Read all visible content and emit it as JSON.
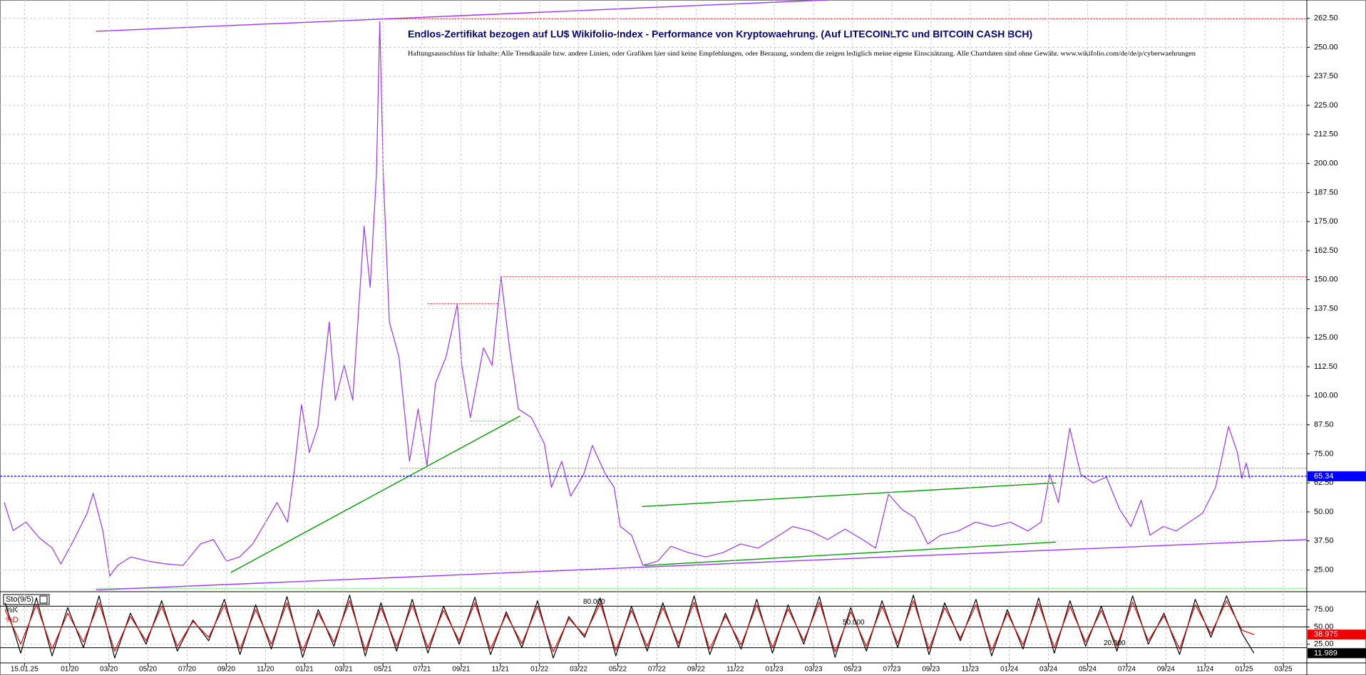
{
  "chart_data": [
    {
      "type": "line",
      "title": "Endlos-Zertifikat bezogen auf LU$ Wikifolio-Index - Performance von Kryptowaehrung. (Auf LITECOINLTC und BITCOIN CASH BCH)",
      "subtitle": "Haftungsausschluss für Inhalte: Alle Trendkanäle bzw. andere Linien, oder Grafiken hier sind keine Empfehlungen, oder Beratung, sondern die zeigen lediglich meine eigene Einschätzung. Alle Chartdaten sind ohne Gewähr. www.wikifolio.com/de/de/p/cyberwaehrungen",
      "x": [
        -3.34,
        -2.89,
        -2.23,
        -1.56,
        -0.89,
        -0.45,
        0.22,
        0.89,
        1.2,
        1.69,
        2.05,
        2.45,
        3.12,
        4.01,
        4.9,
        5.79,
        6.68,
        7.34,
        8.01,
        8.68,
        9.35,
        10.01,
        10.59,
        11.13,
        11.48,
        11.84,
        12.24,
        12.68,
        13.26,
        13.57,
        14.02,
        14.46,
        15.04,
        15.35,
        15.67,
        15.84,
        16.02,
        16.33,
        16.82,
        17.36,
        17.8,
        18.25,
        18.69,
        19.23,
        19.8,
        20.03,
        20.47,
        21.14,
        21.58,
        22.03,
        22.47,
        22.92,
        23.59,
        24.25,
        24.61,
        25.14,
        25.59,
        26.26,
        26.7,
        27.37,
        27.81,
        28.13,
        28.7,
        29.28,
        30.04,
        30.71,
        31.6,
        32.49,
        33.38,
        34.27,
        35.16,
        36.05,
        36.94,
        37.83,
        38.72,
        39.61,
        40.5,
        41.17,
        41.83,
        42.5,
        43.17,
        43.84,
        44.5,
        45.39,
        46.28,
        47.17,
        48.06,
        48.95,
        49.62,
        50.07,
        50.51,
        51.09,
        51.65,
        52.29,
        52.96,
        53.63,
        54.21,
        54.74,
        55.19,
        55.86,
        56.53,
        57.2,
        57.87,
        58.54,
        59.2,
        59.65,
        59.88,
        60.1,
        60.3
      ],
      "series": [
        {
          "color": "#9933ff",
          "values": [
            54,
            42,
            45.6,
            38.9,
            34.4,
            27.6,
            38.1,
            49.4,
            58,
            42,
            22.4,
            27,
            30.6,
            28.8,
            27.6,
            27,
            36.2,
            38.1,
            28.8,
            30.6,
            36.2,
            45.6,
            54,
            45.6,
            68.1,
            96.2,
            75.6,
            86.8,
            131.8,
            98.1,
            113.1,
            98.1,
            173,
            146.7,
            195.4,
            261,
            195.4,
            131.8,
            116.8,
            71.8,
            94.3,
            70,
            105.5,
            116.8,
            139.3,
            113.1,
            90.6,
            120.6,
            113.1,
            151.2,
            120.6,
            94.3,
            90.6,
            79.3,
            60.6,
            71.8,
            56.8,
            66.2,
            78.6,
            66.2,
            60.6,
            43.7,
            40,
            27,
            28.8,
            35.2,
            32.5,
            30.6,
            32.5,
            36.2,
            34.4,
            38.9,
            43.7,
            41.8,
            38.1,
            42.6,
            38.1,
            34.4,
            57.6,
            51.2,
            47.5,
            36.2,
            40,
            41.8,
            45.6,
            43.7,
            45.6,
            41.8,
            45.6,
            66.2,
            54,
            86,
            66.2,
            62.5,
            65,
            51.2,
            43.7,
            55,
            40,
            43.7,
            41.8,
            45.6,
            49.4,
            60.6,
            86.8,
            75.6,
            64.4,
            71,
            64.4
          ]
        }
      ],
      "current": 65.34,
      "current_color": "#0000ff",
      "trend_lines": [
        {
          "color": "#9933ff",
          "x": [
            1.34,
            38.72
          ],
          "y": [
            256.9,
            270.4
          ]
        },
        {
          "color": "#9933ff",
          "x": [
            1.34,
            63.2
          ],
          "y": [
            16.4,
            38.1
          ]
        },
        {
          "color": "#009900",
          "x": [
            8.23,
            23.01
          ],
          "y": [
            23.9,
            91.3
          ]
        },
        {
          "color": "#009900",
          "x": [
            29.24,
            50.38
          ],
          "y": [
            52.3,
            62.5
          ]
        },
        {
          "color": "#009900",
          "x": [
            29.37,
            50.38
          ],
          "y": [
            26.9,
            37
          ]
        }
      ],
      "levels": [
        {
          "color": "#ff0000",
          "value": 262.2,
          "x": [
            16.02,
            63.2
          ]
        },
        {
          "color": "#ff0000",
          "value": 151.2,
          "x": [
            22.03,
            63.2
          ]
        },
        {
          "color": "#ff0000",
          "value": 139.6,
          "x": [
            18.3,
            21.9
          ]
        },
        {
          "color": "#33dd33",
          "value": 89.1,
          "x": [
            20.47,
            23.1
          ]
        },
        {
          "color": "#33dd33",
          "value": 68.8,
          "x": [
            16.91,
            63.2
          ]
        },
        {
          "color": "#33dd33",
          "value": 17.1,
          "x": [
            1.34,
            63.2
          ]
        }
      ],
      "xlim": [
        -3.56,
        63.2
      ],
      "xticks": [
        {
          "value": -2.31,
          "label": "15.01.25"
        },
        {
          "value": 0,
          "label": "01/20"
        },
        {
          "value": 2,
          "label": "03/20"
        },
        {
          "value": 4,
          "label": "05/20"
        },
        {
          "value": 6,
          "label": "07/20"
        },
        {
          "value": 8,
          "label": "09/20"
        },
        {
          "value": 10,
          "label": "11/20"
        },
        {
          "value": 12,
          "label": "01/21"
        },
        {
          "value": 14,
          "label": "03/21"
        },
        {
          "value": 16,
          "label": "05/21"
        },
        {
          "value": 18,
          "label": "07/21"
        },
        {
          "value": 20,
          "label": "09/21"
        },
        {
          "value": 22,
          "label": "11/21"
        },
        {
          "value": 24,
          "label": "01/22"
        },
        {
          "value": 26,
          "label": "03/22"
        },
        {
          "value": 28,
          "label": "05/22"
        },
        {
          "value": 30,
          "label": "07/22"
        },
        {
          "value": 32,
          "label": "09/22"
        },
        {
          "value": 34,
          "label": "11/22"
        },
        {
          "value": 36,
          "label": "01/23"
        },
        {
          "value": 38,
          "label": "03/23"
        },
        {
          "value": 40,
          "label": "05/23"
        },
        {
          "value": 42,
          "label": "07/23"
        },
        {
          "value": 44,
          "label": "09/23"
        },
        {
          "value": 46,
          "label": "11/23"
        },
        {
          "value": 48,
          "label": "01/24"
        },
        {
          "value": 50,
          "label": "03/24"
        },
        {
          "value": 52,
          "label": "05/24"
        },
        {
          "value": 54,
          "label": "07/24"
        },
        {
          "value": 56,
          "label": "09/24"
        },
        {
          "value": 58,
          "label": "11/24"
        },
        {
          "value": 60,
          "label": "01/25"
        },
        {
          "value": 62,
          "label": "03/25"
        }
      ],
      "ylim": [
        25,
        262.5
      ],
      "yticks": [
        {
          "value": 25,
          "label": "25.00"
        },
        {
          "value": 37.5,
          "label": "37.50"
        },
        {
          "value": 50,
          "label": "50.00"
        },
        {
          "value": 62.5,
          "label": "62.50"
        },
        {
          "value": 75,
          "label": "75.00"
        },
        {
          "value": 87.5,
          "label": "87.50"
        },
        {
          "value": 100,
          "label": "100.00"
        },
        {
          "value": 112.5,
          "label": "112.50"
        },
        {
          "value": 125,
          "label": "125.00"
        },
        {
          "value": 137.5,
          "label": "137.50"
        },
        {
          "value": 150,
          "label": "150.00"
        },
        {
          "value": 162.5,
          "label": "162.50"
        },
        {
          "value": 175,
          "label": "175.00"
        },
        {
          "value": 187.5,
          "label": "187.50"
        },
        {
          "value": 200,
          "label": "200.00"
        },
        {
          "value": 212.5,
          "label": "212.50"
        },
        {
          "value": 225,
          "label": "225.00"
        },
        {
          "value": 237.5,
          "label": "237.50"
        },
        {
          "value": 250,
          "label": "250.00"
        },
        {
          "value": 262.5,
          "label": "262.50"
        }
      ],
      "grid": true
    },
    {
      "type": "line",
      "title": "Sto(9/5)",
      "x": [
        -3.3,
        -2.5,
        -1.7,
        -0.9,
        -0.1,
        0.7,
        1.5,
        2.3,
        3.1,
        3.9,
        4.7,
        5.5,
        6.3,
        7.1,
        7.9,
        8.7,
        9.5,
        10.3,
        11.1,
        11.9,
        12.7,
        13.5,
        14.3,
        15.1,
        15.9,
        16.7,
        17.5,
        18.3,
        19.1,
        19.9,
        20.7,
        21.5,
        22.3,
        23.1,
        23.9,
        24.7,
        25.5,
        26.3,
        27.1,
        27.9,
        28.7,
        29.5,
        30.3,
        31.1,
        31.9,
        32.7,
        33.5,
        34.3,
        35.1,
        35.9,
        36.7,
        37.5,
        38.3,
        39.1,
        39.9,
        40.7,
        41.5,
        42.3,
        43.1,
        43.9,
        44.7,
        45.5,
        46.3,
        47.1,
        47.9,
        48.7,
        49.5,
        50.3,
        51.1,
        51.9,
        52.7,
        53.5,
        54.3,
        55.1,
        55.9,
        56.7,
        57.5,
        58.3,
        59.1,
        59.9,
        60.5
      ],
      "series": [
        {
          "name": "%K",
          "color": "#000000",
          "values": [
            85,
            12,
            92,
            8,
            78,
            20,
            95,
            5,
            70,
            25,
            88,
            15,
            60,
            30,
            90,
            10,
            82,
            18,
            94,
            6,
            75,
            22,
            96,
            8,
            85,
            15,
            90,
            12,
            80,
            25,
            93,
            10,
            72,
            20,
            88,
            5,
            65,
            35,
            92,
            8,
            80,
            15,
            85,
            20,
            95,
            10,
            70,
            18,
            90,
            12,
            82,
            25,
            94,
            6,
            78,
            15,
            88,
            20,
            96,
            10,
            85,
            30,
            90,
            8,
            75,
            18,
            92,
            12,
            88,
            22,
            80,
            15,
            95,
            25,
            70,
            10,
            90,
            35,
            95,
            40,
            11.989
          ]
        },
        {
          "name": "%D",
          "color": "#ee0000",
          "values": [
            75,
            25,
            82,
            18,
            70,
            28,
            85,
            15,
            65,
            30,
            80,
            22,
            58,
            35,
            82,
            18,
            75,
            25,
            85,
            15,
            70,
            28,
            88,
            16,
            78,
            22,
            82,
            20,
            74,
            30,
            85,
            18,
            68,
            26,
            80,
            14,
            62,
            38,
            84,
            16,
            74,
            22,
            78,
            26,
            86,
            18,
            66,
            24,
            82,
            20,
            76,
            30,
            86,
            14,
            72,
            22,
            80,
            26,
            88,
            18,
            78,
            34,
            82,
            16,
            70,
            24,
            84,
            20,
            80,
            28,
            74,
            22,
            86,
            30,
            66,
            18,
            82,
            40,
            88,
            45,
            38.975
          ]
        }
      ],
      "levels": [
        {
          "value": 80,
          "label": "80.000"
        },
        {
          "value": 50,
          "label": "50.000"
        },
        {
          "value": 20,
          "label": "20.000"
        }
      ],
      "xlim": [
        -3.56,
        63.2
      ],
      "ylim": [
        0,
        100
      ],
      "yticks": [
        {
          "value": 75,
          "label": "75.00"
        },
        {
          "value": 50,
          "label": "50.00"
        },
        {
          "value": 25,
          "label": "25.00"
        }
      ],
      "grid": true
    }
  ]
}
